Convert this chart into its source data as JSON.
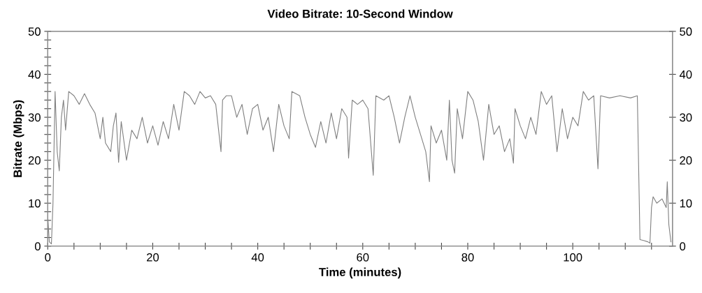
{
  "chart_data": {
    "type": "line",
    "title": "Video Bitrate: 10-Second Window",
    "xlabel": "Time (minutes)",
    "ylabel": "Bitrate (Mbps)",
    "xlim": [
      0,
      119
    ],
    "ylim": [
      0,
      50
    ],
    "y2lim": [
      0,
      50
    ],
    "xticks": [
      0,
      {
        "value": 5,
        "label": null
      },
      {
        "value": 10,
        "label": null
      },
      {
        "value": 15,
        "label": null
      },
      20,
      {
        "value": 25,
        "label": null
      },
      {
        "value": 30,
        "label": null
      },
      {
        "value": 35,
        "label": null
      },
      40,
      {
        "value": 45,
        "label": null
      },
      {
        "value": 50,
        "label": null
      },
      {
        "value": 55,
        "label": null
      },
      60,
      {
        "value": 65,
        "label": null
      },
      {
        "value": 70,
        "label": null
      },
      {
        "value": 75,
        "label": null
      },
      80,
      {
        "value": 85,
        "label": null
      },
      {
        "value": 90,
        "label": null
      },
      {
        "value": 95,
        "label": null
      },
      100,
      {
        "value": 105,
        "label": null
      },
      {
        "value": 110,
        "label": null
      },
      {
        "value": 115,
        "label": null
      }
    ],
    "yticks": [
      0,
      {
        "value": 2,
        "label": null
      },
      {
        "value": 4,
        "label": null
      },
      {
        "value": 6,
        "label": null
      },
      {
        "value": 8,
        "label": null
      },
      10,
      {
        "value": 12,
        "label": null
      },
      {
        "value": 14,
        "label": null
      },
      {
        "value": 16,
        "label": null
      },
      {
        "value": 18,
        "label": null
      },
      20,
      {
        "value": 22,
        "label": null
      },
      {
        "value": 24,
        "label": null
      },
      {
        "value": 26,
        "label": null
      },
      {
        "value": 28,
        "label": null
      },
      30,
      {
        "value": 32,
        "label": null
      },
      {
        "value": 34,
        "label": null
      },
      {
        "value": 36,
        "label": null
      },
      {
        "value": 38,
        "label": null
      },
      40,
      {
        "value": 42,
        "label": null
      },
      {
        "value": 44,
        "label": null
      },
      {
        "value": 46,
        "label": null
      },
      {
        "value": 48,
        "label": null
      },
      50
    ],
    "y2ticks": [
      0,
      10,
      20,
      30,
      40,
      50
    ],
    "grid": false,
    "legend": false,
    "marker": "none",
    "line_style": "solid",
    "x": [
      0,
      0.3,
      0.7,
      1.0,
      1.4,
      1.8,
      2.2,
      2.6,
      3.0,
      3.4,
      4,
      5,
      6,
      7,
      8,
      9,
      10,
      10.5,
      11,
      12,
      12.5,
      13,
      13.5,
      14,
      15,
      16,
      17,
      18,
      19,
      20,
      21,
      22,
      23,
      24,
      25,
      26,
      27,
      28,
      29,
      30,
      31,
      32,
      33,
      33.3,
      34,
      35,
      36,
      37,
      38,
      39,
      40,
      41,
      42,
      43,
      44,
      45,
      46,
      46.5,
      48,
      49,
      50,
      51,
      52,
      53,
      54,
      55,
      56,
      57,
      57.3,
      58,
      59,
      60,
      61,
      62,
      62.5,
      64,
      65,
      66,
      67,
      68,
      69,
      70,
      71,
      72,
      72.7,
      73,
      74,
      75,
      76,
      76.5,
      77,
      77.5,
      78,
      79,
      80,
      81,
      82,
      83,
      84,
      85,
      86,
      87,
      88,
      88.7,
      89,
      90,
      91,
      92,
      93,
      94,
      95,
      96,
      97,
      98,
      99,
      100,
      101,
      102,
      103,
      104,
      104.8,
      105.3,
      107,
      109,
      111,
      112.3,
      112.8,
      113.5,
      114.3,
      114.7,
      115,
      115.3,
      116,
      117,
      117.8,
      118,
      118.3,
      118.7
    ],
    "series": [
      {
        "color": "#808080",
        "values": [
          7,
          1,
          0.5,
          10,
          36,
          22,
          17.5,
          30,
          34,
          27,
          36,
          35,
          33,
          35.5,
          33,
          31,
          25,
          30,
          24,
          22,
          28,
          31,
          19.5,
          29,
          20,
          27,
          25,
          30,
          24,
          28,
          23.5,
          29,
          25,
          33,
          27,
          36,
          35,
          33,
          36,
          34.5,
          35,
          33,
          22,
          34,
          35,
          35,
          30,
          33,
          26,
          32,
          33,
          27,
          30,
          22,
          33,
          28,
          25,
          36,
          35,
          30,
          26,
          23,
          29,
          24,
          31,
          25,
          32,
          30,
          20.5,
          34,
          33,
          34,
          32,
          16.5,
          35,
          34,
          35,
          30,
          24,
          30,
          35,
          30,
          26,
          22,
          15,
          28,
          24,
          27,
          20,
          34,
          20,
          17,
          32,
          25,
          36,
          34,
          29,
          20,
          33,
          26,
          28,
          22,
          25,
          19.3,
          32,
          28,
          25,
          30,
          26,
          36,
          33,
          35,
          22,
          32,
          25,
          30,
          28,
          36,
          34,
          35,
          18,
          35,
          34.5,
          35,
          34.5,
          35,
          1.5,
          1.3,
          1,
          0.7,
          9,
          11.5,
          10,
          11,
          9,
          15,
          5,
          1
        ]
      }
    ]
  }
}
